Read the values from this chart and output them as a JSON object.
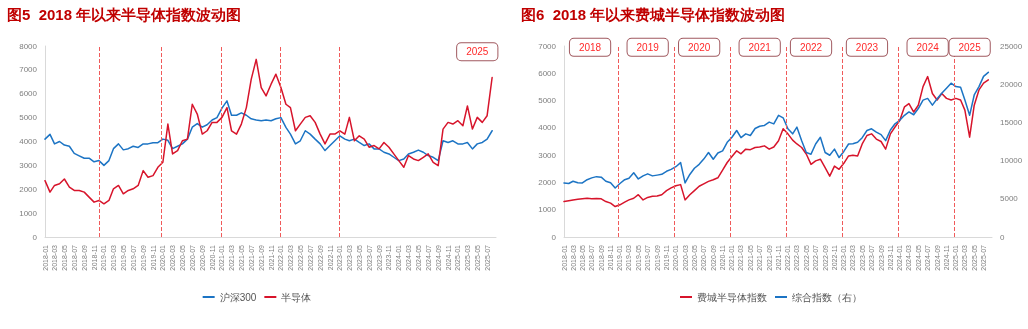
{
  "chart_data": [
    {
      "type": "line",
      "title": "图5  2018 年以来半导体指数波动图",
      "x": [
        "2018-01",
        "2018-02",
        "2018-03",
        "2018-04",
        "2018-05",
        "2018-06",
        "2018-07",
        "2018-08",
        "2018-09",
        "2018-10",
        "2018-11",
        "2018-12",
        "2019-01",
        "2019-02",
        "2019-03",
        "2019-04",
        "2019-05",
        "2019-06",
        "2019-07",
        "2019-08",
        "2019-09",
        "2019-10",
        "2019-11",
        "2019-12",
        "2020-01",
        "2020-02",
        "2020-03",
        "2020-04",
        "2020-05",
        "2020-06",
        "2020-07",
        "2020-08",
        "2020-09",
        "2020-10",
        "2020-11",
        "2020-12",
        "2021-01",
        "2021-02",
        "2021-03",
        "2021-04",
        "2021-05",
        "2021-06",
        "2021-07",
        "2021-08",
        "2021-09",
        "2021-10",
        "2021-11",
        "2021-12",
        "2022-01",
        "2022-02",
        "2022-03",
        "2022-04",
        "2022-05",
        "2022-06",
        "2022-07",
        "2022-08",
        "2022-09",
        "2022-10",
        "2022-11",
        "2022-12",
        "2023-01",
        "2023-02",
        "2023-03",
        "2023-04",
        "2023-05",
        "2023-06",
        "2023-07",
        "2023-08",
        "2023-09",
        "2023-10",
        "2023-11",
        "2023-12",
        "2024-01",
        "2024-02",
        "2024-03",
        "2024-04",
        "2024-05",
        "2024-06",
        "2024-07",
        "2024-08",
        "2024-09",
        "2024-10",
        "2024-11",
        "2024-12",
        "2025-01",
        "2025-02",
        "2025-03",
        "2025-04",
        "2025-05",
        "2025-06",
        "2025-07",
        "2025-08"
      ],
      "series": [
        {
          "name": "沪深300",
          "color": "#1c74c4",
          "values": [
            4100,
            4300,
            3900,
            4000,
            3850,
            3800,
            3500,
            3400,
            3300,
            3300,
            3150,
            3200,
            3000,
            3200,
            3700,
            3900,
            3650,
            3700,
            3800,
            3750,
            3900,
            3900,
            3950,
            3950,
            4100,
            4050,
            3700,
            3800,
            3900,
            4100,
            4600,
            4750,
            4600,
            4700,
            4900,
            5000,
            5400,
            5700,
            5100,
            5100,
            5200,
            5100,
            4950,
            4900,
            4870,
            4900,
            4870,
            4950,
            5000,
            4590,
            4310,
            3900,
            4030,
            4450,
            4310,
            4100,
            3900,
            3620,
            3830,
            4030,
            4240,
            4100,
            4030,
            4100,
            3960,
            3830,
            3900,
            3690,
            3690,
            3550,
            3480,
            3340,
            3200,
            3270,
            3480,
            3550,
            3640,
            3550,
            3410,
            3340,
            3200,
            4030,
            3960,
            4030,
            3900,
            3900,
            3960,
            3690,
            3900,
            3960,
            4100,
            4450
          ]
        },
        {
          "name": "半导体",
          "color": "#d7142b",
          "values": [
            2360,
            1880,
            2160,
            2230,
            2430,
            2090,
            1950,
            1950,
            1880,
            1670,
            1460,
            1530,
            1390,
            1530,
            2020,
            2160,
            1810,
            1950,
            2020,
            2160,
            2780,
            2500,
            2570,
            2920,
            3130,
            4730,
            3480,
            3620,
            4030,
            4100,
            5560,
            5150,
            4310,
            4450,
            4800,
            4800,
            5010,
            5420,
            4450,
            4310,
            4730,
            5420,
            6600,
            7440,
            6260,
            5910,
            6400,
            6820,
            6260,
            5560,
            5420,
            4450,
            4730,
            5010,
            5080,
            4800,
            4310,
            3900,
            4310,
            4310,
            4450,
            4310,
            5010,
            4030,
            4240,
            4100,
            3760,
            3830,
            3690,
            3960,
            3760,
            3480,
            3200,
            2920,
            3410,
            3270,
            3200,
            3340,
            3480,
            3130,
            2990,
            4520,
            4800,
            4730,
            4870,
            4660,
            5490,
            4520,
            5010,
            4800,
            5080,
            6680
          ]
        }
      ],
      "xlim": [
        "2018-01-01",
        "2025-08-25"
      ],
      "xticks": [
        "2018-01",
        "2018-03",
        "2018-05",
        "2018-07",
        "2018-09",
        "2018-11",
        "2019-01",
        "2019-03",
        "2019-05",
        "2019-07",
        "2019-09",
        "2019-11",
        "2020-01",
        "2020-03",
        "2020-05",
        "2020-07",
        "2020-09",
        "2020-11",
        "2021-01",
        "2021-03",
        "2021-05",
        "2021-07",
        "2021-09",
        "2021-11",
        "2022-01",
        "2022-03",
        "2022-05",
        "2022-07",
        "2022-09",
        "2022-11",
        "2023-01",
        "2023-03",
        "2023-05",
        "2023-07",
        "2023-09",
        "2023-11",
        "2024-01",
        "2024-03",
        "2024-05",
        "2024-07",
        "2024-09",
        "2024-11",
        "2025-01",
        "2025-03",
        "2025-05",
        "2025-07"
      ],
      "ylim": [
        0,
        8000
      ],
      "yticks": [
        0,
        1000,
        2000,
        3000,
        4000,
        5000,
        6000,
        7000,
        8000
      ],
      "ref_lines": [
        {
          "axis": "x",
          "value": "2018-12-05",
          "color": "#f05a5a",
          "line_style": "dashed"
        },
        {
          "axis": "x",
          "value": "2019-12-20",
          "color": "#f05a5a",
          "line_style": "dashed"
        },
        {
          "axis": "x",
          "value": "2020-12-28",
          "color": "#f05a5a",
          "line_style": "dashed"
        },
        {
          "axis": "x",
          "value": "2021-12-25",
          "color": "#f05a5a",
          "line_style": "dashed"
        },
        {
          "axis": "x",
          "value": "2022-12-28",
          "color": "#f05a5a",
          "line_style": "dashed"
        }
      ],
      "annotations": [
        {
          "text": "2025",
          "x": "2025-05",
          "y": 7760
        }
      ],
      "legend": "bottom",
      "grid": false,
      "marker": "none",
      "line_style": "solid"
    },
    {
      "type": "line",
      "title": "图6  2018 年以来费城半导体指数波动图",
      "x": [
        "2018-01",
        "2018-02",
        "2018-03",
        "2018-04",
        "2018-05",
        "2018-06",
        "2018-07",
        "2018-08",
        "2018-09",
        "2018-10",
        "2018-11",
        "2018-12",
        "2019-01",
        "2019-02",
        "2019-03",
        "2019-04",
        "2019-05",
        "2019-06",
        "2019-07",
        "2019-08",
        "2019-09",
        "2019-10",
        "2019-11",
        "2019-12",
        "2020-01",
        "2020-02",
        "2020-03",
        "2020-04",
        "2020-05",
        "2020-06",
        "2020-07",
        "2020-08",
        "2020-09",
        "2020-10",
        "2020-11",
        "2020-12",
        "2021-01",
        "2021-02",
        "2021-03",
        "2021-04",
        "2021-05",
        "2021-06",
        "2021-07",
        "2021-08",
        "2021-09",
        "2021-10",
        "2021-11",
        "2021-12",
        "2022-01",
        "2022-02",
        "2022-03",
        "2022-04",
        "2022-05",
        "2022-06",
        "2022-07",
        "2022-08",
        "2022-09",
        "2022-10",
        "2022-11",
        "2022-12",
        "2023-01",
        "2023-02",
        "2023-03",
        "2023-04",
        "2023-05",
        "2023-06",
        "2023-07",
        "2023-08",
        "2023-09",
        "2023-10",
        "2023-11",
        "2023-12",
        "2024-01",
        "2024-02",
        "2024-03",
        "2024-04",
        "2024-05",
        "2024-06",
        "2024-07",
        "2024-08",
        "2024-09",
        "2024-10",
        "2024-11",
        "2024-12",
        "2025-01",
        "2025-02",
        "2025-03",
        "2025-04",
        "2025-05",
        "2025-06",
        "2025-07",
        "2025-08"
      ],
      "series": [
        {
          "name": "费城半导体指数",
          "color": "#d7142b",
          "values": [
            1300,
            1330,
            1360,
            1380,
            1400,
            1420,
            1400,
            1410,
            1400,
            1300,
            1240,
            1115,
            1180,
            1280,
            1360,
            1420,
            1550,
            1360,
            1450,
            1490,
            1500,
            1550,
            1700,
            1800,
            1880,
            1920,
            1360,
            1550,
            1700,
            1860,
            1950,
            2040,
            2100,
            2170,
            2450,
            2730,
            2950,
            3160,
            3050,
            3220,
            3200,
            3280,
            3300,
            3340,
            3220,
            3300,
            3530,
            3965,
            3780,
            3550,
            3410,
            3280,
            3040,
            2660,
            2790,
            2850,
            2540,
            2230,
            2600,
            2480,
            2700,
            2970,
            3000,
            2970,
            3410,
            3720,
            3780,
            3590,
            3500,
            3220,
            3780,
            4030,
            4270,
            4770,
            4890,
            4580,
            4830,
            5510,
            5880,
            5260,
            5020,
            5260,
            5080,
            5020,
            5080,
            5020,
            4650,
            3660,
            4830,
            5390,
            5640,
            5760
          ]
        },
        {
          "name": "综合指数（右）",
          "color": "#1c74c4",
          "axis": "y2",
          "values": [
            7080,
            7000,
            7300,
            7100,
            7080,
            7500,
            7740,
            7900,
            7830,
            7300,
            7100,
            6420,
            7000,
            7500,
            7700,
            8410,
            7600,
            8000,
            8270,
            8000,
            8100,
            8200,
            8600,
            8850,
            9200,
            9740,
            7080,
            8190,
            9000,
            9510,
            10200,
            11060,
            10180,
            11000,
            11280,
            12390,
            13050,
            13940,
            13000,
            13500,
            13280,
            14200,
            14500,
            14600,
            15040,
            14800,
            15930,
            15600,
            14160,
            13500,
            14380,
            12610,
            11060,
            10840,
            12170,
            13050,
            11060,
            10700,
            11500,
            10400,
            11200,
            12170,
            12200,
            12390,
            13000,
            13940,
            14160,
            13720,
            13400,
            12610,
            14000,
            14820,
            15270,
            15930,
            16370,
            16000,
            16810,
            17920,
            18140,
            17260,
            18100,
            18810,
            19470,
            20130,
            19690,
            19600,
            17920,
            15930,
            18590,
            19690,
            21020,
            21550
          ]
        }
      ],
      "xlim": [
        "2018-01-01",
        "2025-08-25"
      ],
      "xticks": [
        "2018-01",
        "2018-03",
        "2018-05",
        "2018-07",
        "2018-09",
        "2018-11",
        "2019-01",
        "2019-03",
        "2019-05",
        "2019-07",
        "2019-09",
        "2019-11",
        "2020-01",
        "2020-03",
        "2020-05",
        "2020-07",
        "2020-09",
        "2020-11",
        "2021-01",
        "2021-03",
        "2021-05",
        "2021-07",
        "2021-09",
        "2021-11",
        "2022-01",
        "2022-03",
        "2022-05",
        "2022-07",
        "2022-09",
        "2022-11",
        "2023-01",
        "2023-03",
        "2023-05",
        "2023-07",
        "2023-09",
        "2023-11",
        "2024-01",
        "2024-03",
        "2024-05",
        "2024-07",
        "2024-09",
        "2024-11",
        "2025-01",
        "2025-03",
        "2025-05",
        "2025-07"
      ],
      "ylim": [
        0,
        7000
      ],
      "yticks": [
        0,
        1000,
        2000,
        3000,
        4000,
        5000,
        6000,
        7000
      ],
      "y2lim": [
        0,
        25000
      ],
      "y2ticks": [
        0,
        5000,
        10000,
        15000,
        20000,
        25000
      ],
      "ref_lines": [
        {
          "axis": "x",
          "value": "2018-12-20",
          "color": "#f05a5a",
          "line_style": "dashed"
        },
        {
          "axis": "x",
          "value": "2019-12-20",
          "color": "#f05a5a",
          "line_style": "dashed"
        },
        {
          "axis": "x",
          "value": "2020-12-20",
          "color": "#f05a5a",
          "line_style": "dashed"
        },
        {
          "axis": "x",
          "value": "2021-12-20",
          "color": "#f05a5a",
          "line_style": "dashed"
        },
        {
          "axis": "x",
          "value": "2022-12-20",
          "color": "#f05a5a",
          "line_style": "dashed"
        },
        {
          "axis": "x",
          "value": "2023-12-20",
          "color": "#f05a5a",
          "line_style": "dashed"
        },
        {
          "axis": "x",
          "value": "2024-12-20",
          "color": "#f05a5a",
          "line_style": "dashed"
        }
      ],
      "annotations": [
        {
          "text": "2018",
          "x": "2018-06-20",
          "y": 6950
        },
        {
          "text": "2019",
          "x": "2019-07",
          "y": 6950
        },
        {
          "text": "2020",
          "x": "2020-06",
          "y": 6950
        },
        {
          "text": "2021",
          "x": "2021-07",
          "y": 6950
        },
        {
          "text": "2022",
          "x": "2022-06",
          "y": 6950
        },
        {
          "text": "2023",
          "x": "2023-06",
          "y": 6950
        },
        {
          "text": "2024",
          "x": "2024-07",
          "y": 6950
        },
        {
          "text": "2025",
          "x": "2025-04",
          "y": 6950
        }
      ],
      "legend": "bottom",
      "grid": false,
      "marker": "none",
      "line_style": "solid"
    }
  ]
}
